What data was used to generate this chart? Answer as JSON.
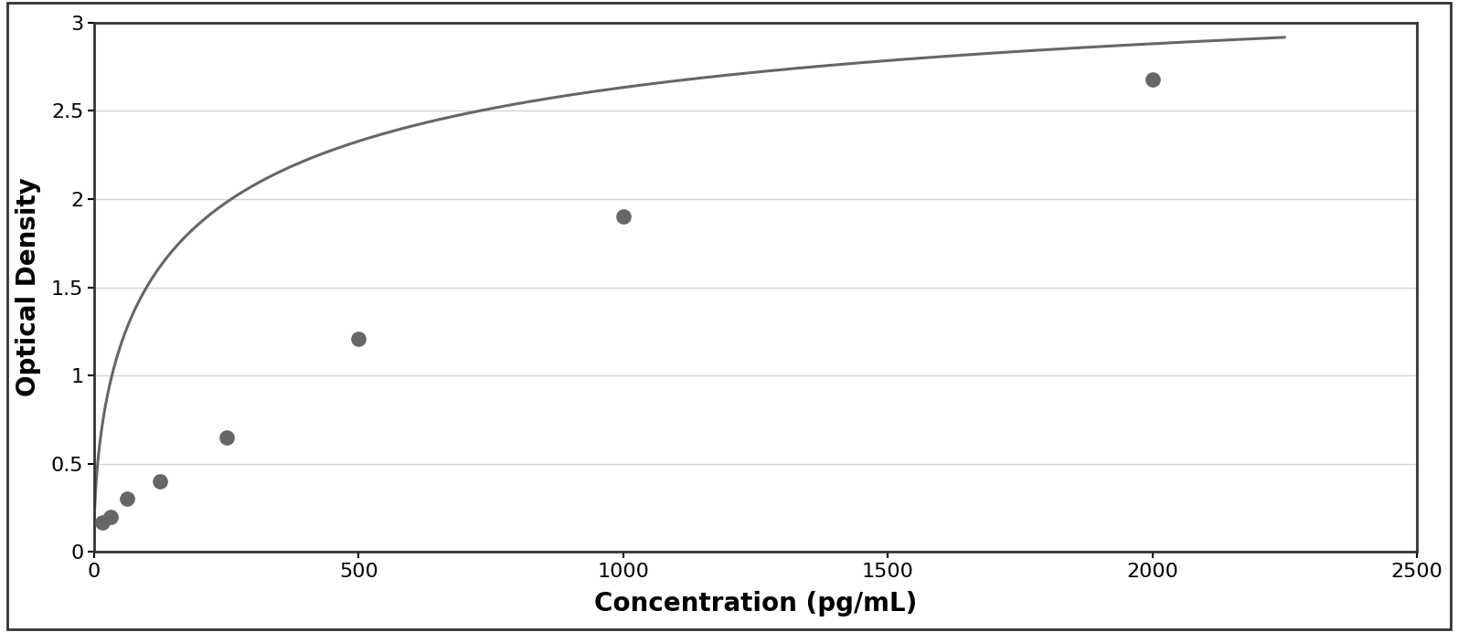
{
  "x_data": [
    15.6,
    31.25,
    62.5,
    125,
    250,
    500,
    1000,
    2000
  ],
  "y_data": [
    0.17,
    0.2,
    0.3,
    0.4,
    0.65,
    1.21,
    1.9,
    2.68
  ],
  "xlabel": "Concentration (pg/mL)",
  "ylabel": "Optical Density",
  "xlim": [
    0,
    2500
  ],
  "ylim": [
    0,
    3.0
  ],
  "xticks": [
    0,
    500,
    1000,
    1500,
    2000,
    2500
  ],
  "yticks": [
    0,
    0.5,
    1.0,
    1.5,
    2.0,
    2.5,
    3.0
  ],
  "data_color": "#666666",
  "line_color": "#666666",
  "marker_size": 11,
  "line_width": 2.2,
  "background_color": "#ffffff",
  "plot_bg_color": "#ffffff",
  "border_color": "#333333",
  "outer_border_color": "#333333",
  "grid_color": "#d0d0d0",
  "xlabel_fontsize": 20,
  "ylabel_fontsize": 20,
  "tick_fontsize": 16,
  "xlabel_fontweight": "bold",
  "ylabel_fontweight": "bold",
  "curve_x_end": 2250,
  "four_pl_a": 0.12,
  "four_pl_b": 0.62,
  "four_pl_c": 180.0,
  "four_pl_d": 3.5
}
